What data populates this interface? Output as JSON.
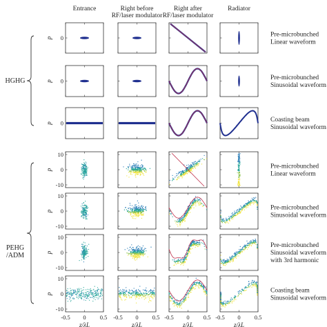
{
  "chart_data": {
    "type": "scatter",
    "description_grid": "7 rows x 4 columns of phase-space scatter panels",
    "columns": [
      "Entrance",
      "Right before RF/laser modulator",
      "Right after RF/laser modulator",
      "Radiator"
    ],
    "column_lines": [
      [
        "Entrance"
      ],
      [
        "Right before",
        "RF/laser modulator"
      ],
      [
        "Right after",
        "RF/laser modulator"
      ],
      [
        "Radiator"
      ]
    ],
    "groups": [
      {
        "name": "HGHG",
        "rows": [
          0,
          1,
          2
        ]
      },
      {
        "name_lines": [
          "PEHG",
          "/ADM"
        ],
        "rows": [
          3,
          4,
          5,
          6
        ]
      }
    ],
    "rows": [
      {
        "label_lines": [
          "Pre-microbunched",
          "Linear waveform"
        ]
      },
      {
        "label_lines": [
          "Pre-microbunched",
          "Sinusoidal waveform"
        ]
      },
      {
        "label_lines": [
          "Coasting beam",
          "Sinusoidal waveform"
        ]
      },
      {
        "label_lines": [
          "Pre-microbunched",
          "Linear waveform"
        ]
      },
      {
        "label_lines": [
          "Pre-microbunched",
          "Sinusoidal waveform"
        ]
      },
      {
        "label_lines": [
          "Pre-microbunched",
          "Sinusoidal waveform",
          "with 3rd harmonic"
        ]
      },
      {
        "label_lines": [
          "Coasting beam",
          "Sinusoidal waveform"
        ]
      }
    ],
    "ylabel": "p",
    "xlabel": "z/λL",
    "xlim": [
      -0.5,
      0.5
    ],
    "xticks": [
      "-0.5",
      "0",
      "0.5"
    ],
    "ylim_lower_rows": [
      -10,
      10
    ],
    "yticks_lower_rows": [
      "10",
      "0",
      "-10"
    ],
    "yticks_upper_rows": [
      "0"
    ],
    "colors": {
      "hghg": "#1f2f8f",
      "curve": "#c0334d",
      "pehg_a": "#26a69a",
      "pehg_b": "#2c7fb8",
      "pehg_c": "#f0e442",
      "pehg_d": "#8bc34a"
    }
  }
}
